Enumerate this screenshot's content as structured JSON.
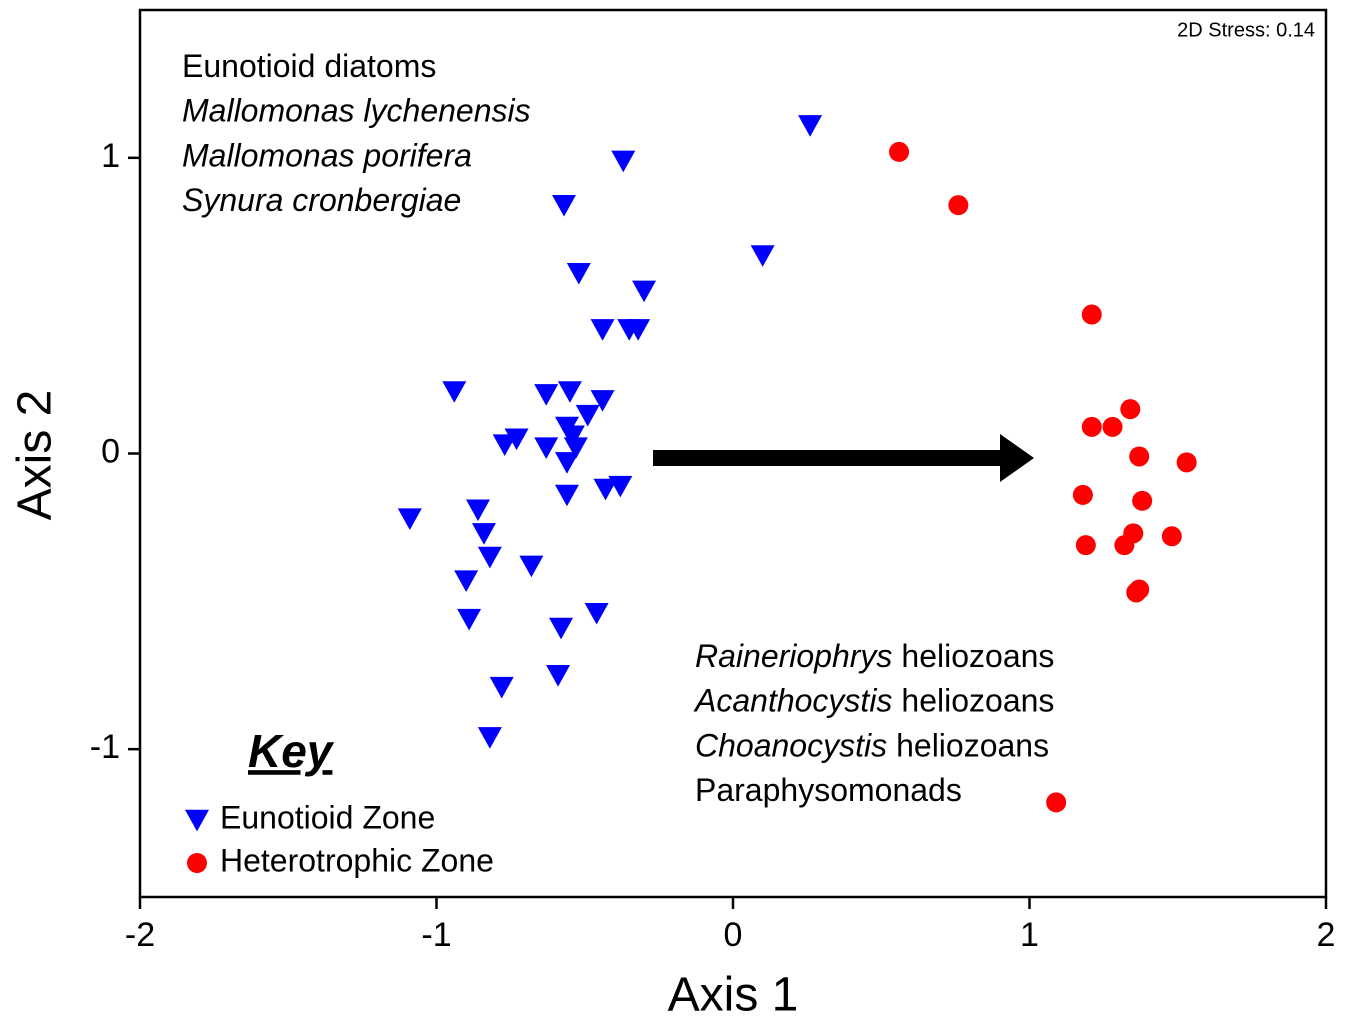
{
  "chart_data": {
    "type": "scatter",
    "xlabel": "Axis 1",
    "ylabel": "Axis 2",
    "stress_label": "2D Stress: 0.14",
    "xlim": [
      -2,
      2
    ],
    "ylim": [
      -1.5,
      1.5
    ],
    "xticks": [
      -2,
      -1,
      0,
      1,
      2
    ],
    "yticks": [
      -1,
      0,
      1
    ],
    "legend_title": "Key",
    "series": [
      {
        "name": "Eunotioid Zone",
        "color": "#0000ff",
        "marker": "triangle-down",
        "x": [
          0.26,
          -0.37,
          -0.57,
          0.1,
          -0.52,
          -0.3,
          -0.44,
          -0.35,
          -0.32,
          -0.94,
          -0.63,
          -0.55,
          -0.44,
          -0.49,
          -0.56,
          -0.54,
          -0.77,
          -0.73,
          -0.63,
          -0.53,
          -0.56,
          -0.38,
          -0.43,
          -0.56,
          -1.09,
          -0.86,
          -0.84,
          -0.82,
          -0.68,
          -0.9,
          -0.89,
          -0.46,
          -0.58,
          -0.59,
          -0.78,
          -0.82
        ],
        "y": [
          1.11,
          0.99,
          0.84,
          0.67,
          0.61,
          0.55,
          0.42,
          0.42,
          0.42,
          0.21,
          0.2,
          0.21,
          0.18,
          0.13,
          0.09,
          0.06,
          0.03,
          0.05,
          0.02,
          0.02,
          -0.03,
          -0.11,
          -0.12,
          -0.14,
          -0.22,
          -0.19,
          -0.27,
          -0.35,
          -0.38,
          -0.43,
          -0.56,
          -0.54,
          -0.59,
          -0.75,
          -0.79,
          -0.96
        ]
      },
      {
        "name": "Heterotrophic Zone",
        "color": "#ff0000",
        "marker": "circle",
        "x": [
          0.56,
          0.76,
          1.21,
          1.21,
          1.28,
          1.34,
          1.37,
          1.53,
          1.18,
          1.38,
          1.35,
          1.19,
          1.32,
          1.48,
          1.37,
          1.36,
          1.09
        ],
        "y": [
          1.02,
          0.84,
          0.47,
          0.09,
          0.09,
          0.15,
          -0.01,
          -0.03,
          -0.14,
          -0.16,
          -0.27,
          -0.31,
          -0.31,
          -0.28,
          -0.46,
          -0.47,
          -1.18
        ]
      }
    ],
    "annotations": [
      {
        "lines": [
          [
            {
              "text": "Eunotioid diatoms"
            }
          ],
          [
            {
              "text": "Mallomonas lychenensis",
              "italic": true
            }
          ],
          [
            {
              "text": "Mallomonas porifera",
              "italic": true
            }
          ],
          [
            {
              "text": "Synura cronbergiae",
              "italic": true
            }
          ]
        ]
      },
      {
        "lines": [
          [
            {
              "text": "Raineriophrys",
              "italic": true
            },
            {
              "text": "heliozoans"
            }
          ],
          [
            {
              "text": "Acanthocystis",
              "italic": true
            },
            {
              "text": "heliozoans"
            }
          ],
          [
            {
              "text": "Choanocystis",
              "italic": true
            },
            {
              "text": "heliozoans"
            }
          ],
          [
            {
              "text": "Paraphysomonads"
            }
          ]
        ]
      }
    ]
  }
}
